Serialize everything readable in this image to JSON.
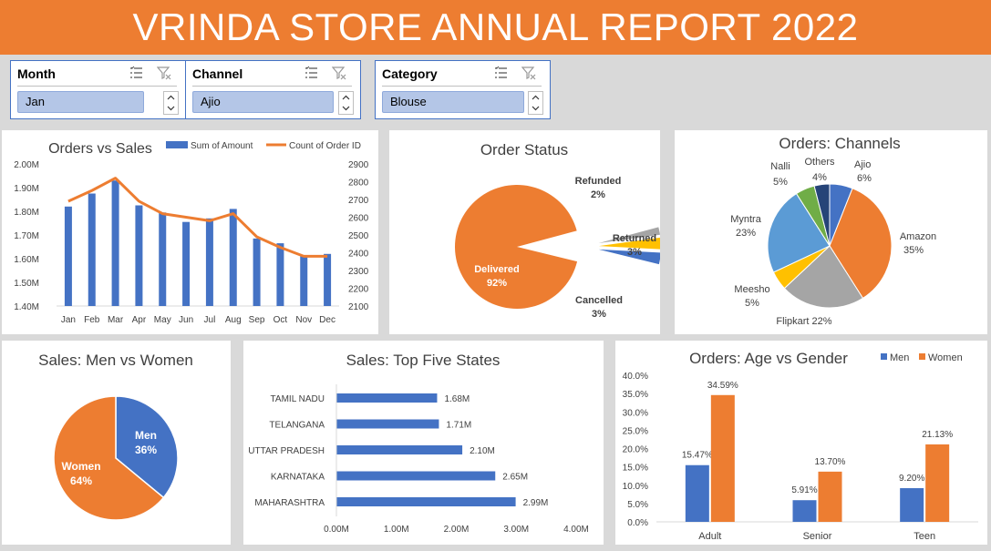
{
  "header": {
    "title": "VRINDA STORE ANNUAL REPORT 2022"
  },
  "slicers": [
    {
      "label": "Month",
      "value": "Jan"
    },
    {
      "label": "Channel",
      "value": "Ajio"
    },
    {
      "label": "Category",
      "value": "Blouse"
    }
  ],
  "chart_data": [
    {
      "id": "orders_vs_sales",
      "type": "bar",
      "title": "Orders vs Sales",
      "categories": [
        "Jan",
        "Feb",
        "Mar",
        "Apr",
        "May",
        "Jun",
        "Jul",
        "Aug",
        "Sep",
        "Oct",
        "Nov",
        "Dec"
      ],
      "series": [
        {
          "name": "Sum of Amount",
          "type": "bar",
          "axis": "left",
          "color": "#4472c4",
          "values": [
            1.82,
            1.875,
            1.93,
            1.825,
            1.795,
            1.755,
            1.77,
            1.81,
            1.685,
            1.665,
            1.61,
            1.62
          ]
        },
        {
          "name": "Count of Order ID",
          "type": "line",
          "axis": "right",
          "color": "#ed7d31",
          "values": [
            2690,
            2750,
            2820,
            2690,
            2620,
            2600,
            2580,
            2620,
            2490,
            2430,
            2380,
            2380
          ]
        }
      ],
      "y_left": {
        "ticks": [
          "1.40M",
          "1.50M",
          "1.60M",
          "1.70M",
          "1.80M",
          "1.90M",
          "2.00M"
        ],
        "min": 1.4,
        "max": 2.0
      },
      "y_right": {
        "ticks": [
          "2100",
          "2200",
          "2300",
          "2400",
          "2500",
          "2600",
          "2700",
          "2800",
          "2900"
        ],
        "min": 2100,
        "max": 2900
      }
    },
    {
      "id": "order_status",
      "type": "pie",
      "title": "Order Status",
      "slices": [
        {
          "label": "Delivered",
          "pct_label": "92%",
          "value": 92,
          "color": "#ed7d31"
        },
        {
          "label": "Refunded",
          "pct_label": "2%",
          "value": 2,
          "color": "#a5a5a5"
        },
        {
          "label": "Returned",
          "pct_label": "3%",
          "value": 3,
          "color": "#ffc000"
        },
        {
          "label": "Cancelled",
          "pct_label": "3%",
          "value": 3,
          "color": "#4472c4"
        }
      ]
    },
    {
      "id": "orders_channels",
      "type": "pie",
      "title": "Orders: Channels",
      "slices": [
        {
          "label": "Ajio",
          "pct_label": "6%",
          "value": 6,
          "color": "#4472c4"
        },
        {
          "label": "Amazon",
          "pct_label": "35%",
          "value": 35,
          "color": "#ed7d31"
        },
        {
          "label": "Flipkart",
          "pct_label": "22%",
          "value": 22,
          "color": "#a5a5a5"
        },
        {
          "label": "Meesho",
          "pct_label": "5%",
          "value": 5,
          "color": "#ffc000"
        },
        {
          "label": "Myntra",
          "pct_label": "23%",
          "value": 23,
          "color": "#5b9bd5"
        },
        {
          "label": "Nalli",
          "pct_label": "5%",
          "value": 5,
          "color": "#70ad47"
        },
        {
          "label": "Others",
          "pct_label": "4%",
          "value": 4,
          "color": "#264478"
        }
      ]
    },
    {
      "id": "sales_men_women",
      "type": "pie",
      "title": "Sales: Men vs Women",
      "slices": [
        {
          "label": "Men",
          "pct_label": "36%",
          "value": 36,
          "color": "#4472c4"
        },
        {
          "label": "Women",
          "pct_label": "64%",
          "value": 64,
          "color": "#ed7d31"
        }
      ]
    },
    {
      "id": "top_five_states",
      "type": "bar",
      "orientation": "horizontal",
      "title": "Sales: Top Five States",
      "categories": [
        "TAMIL NADU",
        "TELANGANA",
        "UTTAR PRADESH",
        "KARNATAKA",
        "MAHARASHTRA"
      ],
      "values": [
        1.68,
        1.71,
        2.1,
        2.65,
        2.99
      ],
      "value_labels": [
        "1.68M",
        "1.71M",
        "2.10M",
        "2.65M",
        "2.99M"
      ],
      "x_ticks": [
        "0.00M",
        "1.00M",
        "2.00M",
        "3.00M",
        "4.00M"
      ],
      "xlim": [
        0,
        4
      ],
      "color": "#4472c4"
    },
    {
      "id": "age_vs_gender",
      "type": "bar",
      "title": "Orders: Age vs Gender",
      "categories": [
        "Adult",
        "Senior",
        "Teen"
      ],
      "series": [
        {
          "name": "Men",
          "color": "#4472c4",
          "values": [
            15.47,
            5.91,
            9.2
          ],
          "labels": [
            "15.47%",
            "5.91%",
            "9.20%"
          ]
        },
        {
          "name": "Women",
          "color": "#ed7d31",
          "values": [
            34.59,
            13.7,
            21.13
          ],
          "labels": [
            "34.59%",
            "13.70%",
            "21.13%"
          ]
        }
      ],
      "y_ticks": [
        "0.0%",
        "5.0%",
        "10.0%",
        "15.0%",
        "20.0%",
        "25.0%",
        "30.0%",
        "35.0%",
        "40.0%"
      ],
      "ylim": [
        0,
        40
      ],
      "legend": "top-right"
    }
  ]
}
